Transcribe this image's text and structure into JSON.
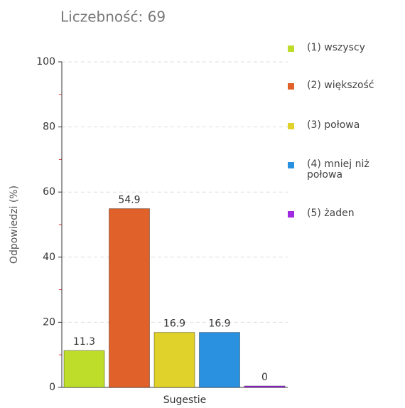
{
  "chart_data": {
    "type": "bar",
    "title": "Liczebność: 69",
    "y_label": "Odpowiedzi (%)",
    "categories": [
      "Sugestie"
    ],
    "series": [
      {
        "name": "(1) wszyscy",
        "color": "#bedc2a",
        "values": [
          11.3
        ]
      },
      {
        "name": "(2) większość",
        "color": "#e0622a",
        "values": [
          54.9
        ]
      },
      {
        "name": "(3) połowa",
        "color": "#e0d22a",
        "values": [
          16.9
        ]
      },
      {
        "name": "(4) mniej niż połowa",
        "color": "#2a90e0",
        "values": [
          16.9
        ]
      },
      {
        "name": "(5) żaden",
        "color": "#a02ae0",
        "values": [
          0
        ]
      }
    ],
    "ylim": [
      0,
      100
    ],
    "yticks": [
      0,
      20,
      40,
      60,
      80,
      100
    ],
    "grid": true,
    "legend": "right"
  }
}
